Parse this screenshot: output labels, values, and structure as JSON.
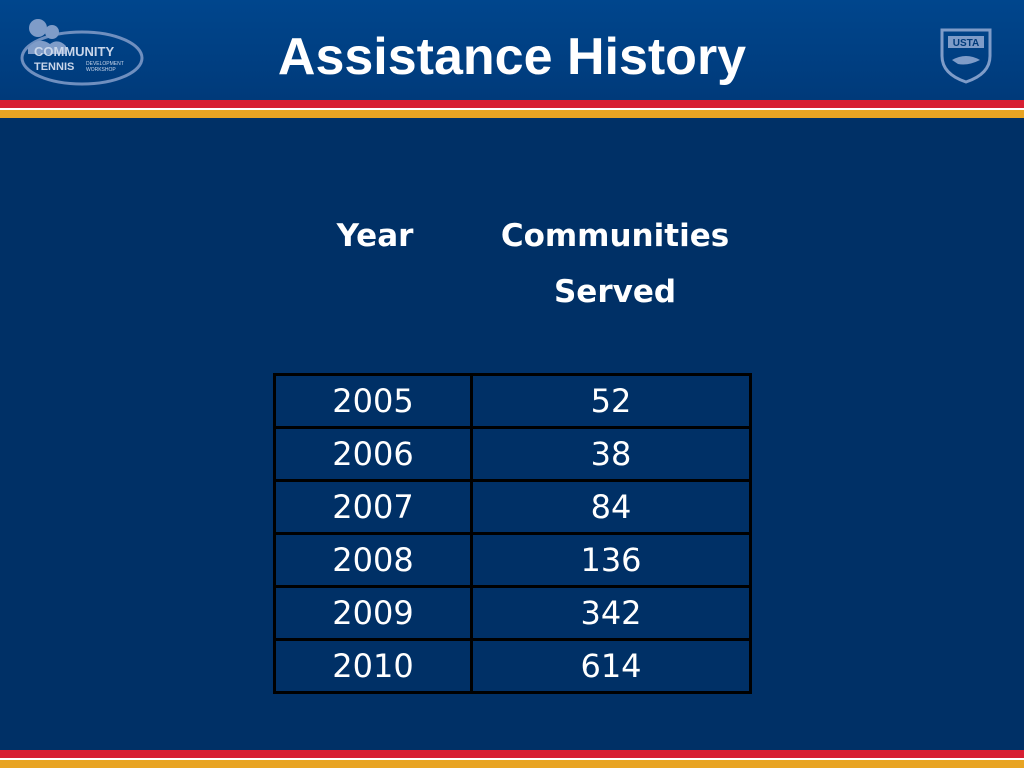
{
  "header": {
    "title": "Assistance History",
    "logo_left": {
      "line1": "COMMUNITY",
      "line2": "TENNIS",
      "line3a": "DEVELOPMENT",
      "line3b": "WORKSHOP"
    },
    "logo_right": {
      "text": "USTA"
    }
  },
  "colors": {
    "background": "#003066",
    "header": "#003a7a",
    "stripe_red": "#d71f33",
    "stripe_gold": "#e8a423"
  },
  "table": {
    "headers": {
      "year": "Year",
      "communities_line1": "Communities",
      "communities_line2": "Served"
    },
    "rows": [
      {
        "year": "2005",
        "communities": "52"
      },
      {
        "year": "2006",
        "communities": "38"
      },
      {
        "year": "2007",
        "communities": "84"
      },
      {
        "year": "2008",
        "communities": "136"
      },
      {
        "year": "2009",
        "communities": "342"
      },
      {
        "year": "2010",
        "communities": "614"
      }
    ]
  }
}
